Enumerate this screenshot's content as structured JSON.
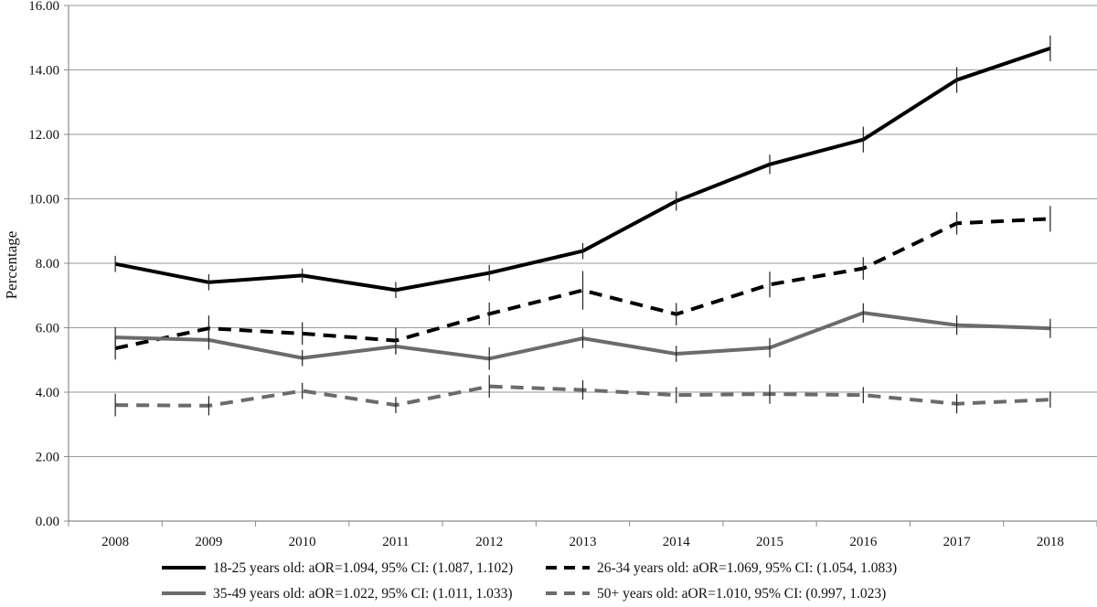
{
  "chart_data": {
    "type": "line",
    "title": "",
    "xlabel": "",
    "ylabel": "Percentage",
    "ylim": [
      0,
      16
    ],
    "y_ticks": [
      "0.00",
      "2.00",
      "4.00",
      "6.00",
      "8.00",
      "10.00",
      "12.00",
      "14.00",
      "16.00"
    ],
    "categories": [
      "2008",
      "2009",
      "2010",
      "2011",
      "2012",
      "2013",
      "2014",
      "2015",
      "2016",
      "2017",
      "2018"
    ],
    "grid": "horizontal",
    "legend_position": "bottom",
    "error_bars": true,
    "series": [
      {
        "name": "18-25 years old: aOR=1.094, 95% CI: (1.087, 1.102)",
        "values": [
          7.98,
          7.41,
          7.62,
          7.17,
          7.7,
          8.38,
          9.93,
          11.07,
          11.84,
          13.69,
          14.67
        ],
        "err": [
          0.25,
          0.25,
          0.22,
          0.25,
          0.25,
          0.25,
          0.3,
          0.3,
          0.4,
          0.4,
          0.4
        ],
        "color": "#000000",
        "dash": "solid"
      },
      {
        "name": "26-34 years old: aOR=1.069, 95% CI: (1.054, 1.083)",
        "values": [
          5.36,
          5.98,
          5.82,
          5.6,
          6.43,
          7.16,
          6.42,
          7.34,
          7.84,
          9.24,
          9.38
        ],
        "err": [
          0.35,
          0.4,
          0.35,
          0.4,
          0.35,
          0.6,
          0.35,
          0.4,
          0.35,
          0.35,
          0.4
        ],
        "color": "#000000",
        "dash": "dashed"
      },
      {
        "name": "35-49 years old: aOR=1.022, 95% CI: (1.011, 1.033)",
        "values": [
          5.7,
          5.62,
          5.06,
          5.42,
          5.04,
          5.67,
          5.19,
          5.38,
          6.46,
          6.08,
          5.98
        ],
        "err": [
          0.32,
          0.3,
          0.25,
          0.25,
          0.35,
          0.3,
          0.25,
          0.3,
          0.3,
          0.3,
          0.3
        ],
        "color": "#6b6b6b",
        "dash": "solid"
      },
      {
        "name": "50+ years old: aOR=1.010, 95% CI: (0.997, 1.023)",
        "values": [
          3.6,
          3.58,
          4.04,
          3.6,
          4.18,
          4.07,
          3.91,
          3.94,
          3.91,
          3.64,
          3.77
        ],
        "err": [
          0.35,
          0.3,
          0.25,
          0.25,
          0.35,
          0.3,
          0.25,
          0.3,
          0.25,
          0.3,
          0.25
        ],
        "color": "#6b6b6b",
        "dash": "dashed"
      }
    ]
  }
}
